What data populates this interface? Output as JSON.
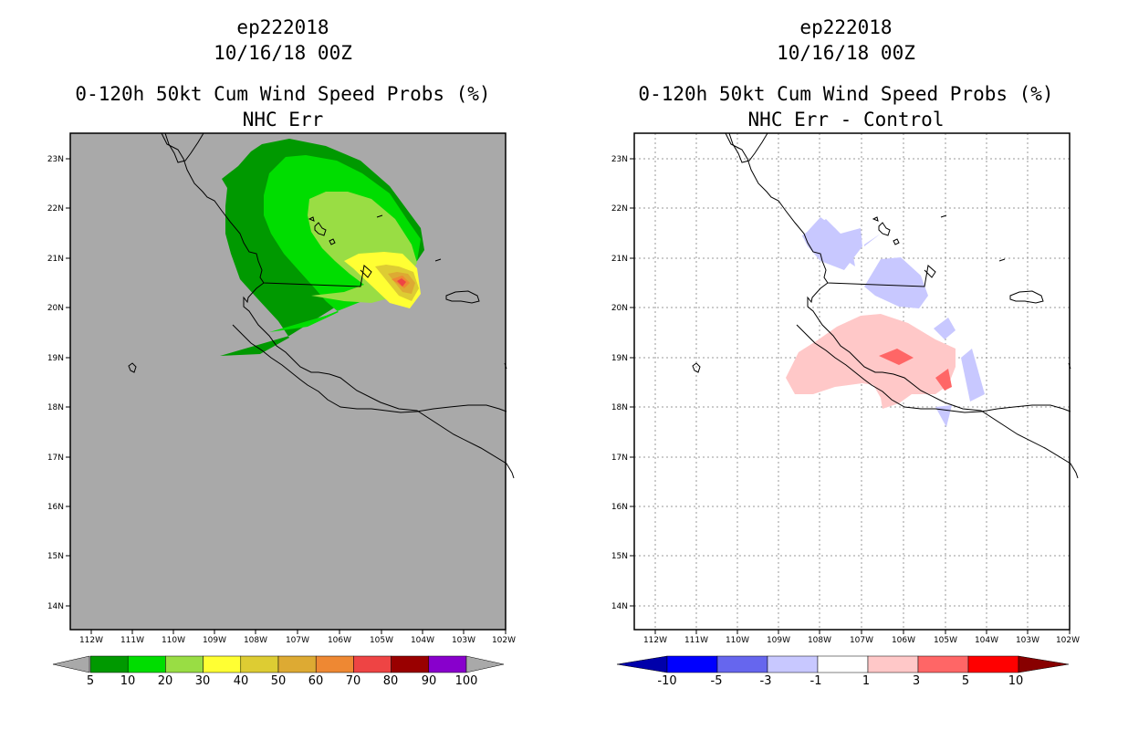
{
  "left_panel": {
    "storm_id": "ep222018",
    "datetime": "10/16/18 00Z",
    "product": "0-120h 50kt Cum Wind Speed Probs (%)",
    "subtitle": "NHC Err",
    "background_color": "#a9a9a9",
    "colorbar": {
      "colors": [
        "#009900",
        "#00dd00",
        "#99dd44",
        "#ffff33",
        "#ddcc33",
        "#ddaa33",
        "#ee8833",
        "#ee4444",
        "#990000",
        "#8800cc"
      ],
      "labels": [
        "5",
        "10",
        "20",
        "30",
        "40",
        "50",
        "60",
        "70",
        "80",
        "90",
        "100"
      ]
    }
  },
  "right_panel": {
    "storm_id": "ep222018",
    "datetime": "10/16/18 00Z",
    "product": "0-120h 50kt Cum Wind Speed Probs (%)",
    "subtitle": "NHC Err - Control",
    "background_color": "#ffffff",
    "colorbar": {
      "colors": [
        "#0000aa",
        "#0000ff",
        "#6666ee",
        "#c8c8ff",
        "#ffffff",
        "#ffc8c8",
        "#ff6666",
        "#ff0000",
        "#880000"
      ],
      "labels": [
        "-10",
        "-5",
        "-3",
        "-1",
        "1",
        "3",
        "5",
        "10"
      ]
    }
  },
  "axes": {
    "lon_labels": [
      "112W",
      "111W",
      "110W",
      "109W",
      "108W",
      "107W",
      "106W",
      "105W",
      "104W",
      "103W",
      "102W"
    ],
    "lat_labels": [
      "23N",
      "22N",
      "21N",
      "20N",
      "19N",
      "18N",
      "17N",
      "16N",
      "15N",
      "14N"
    ]
  }
}
